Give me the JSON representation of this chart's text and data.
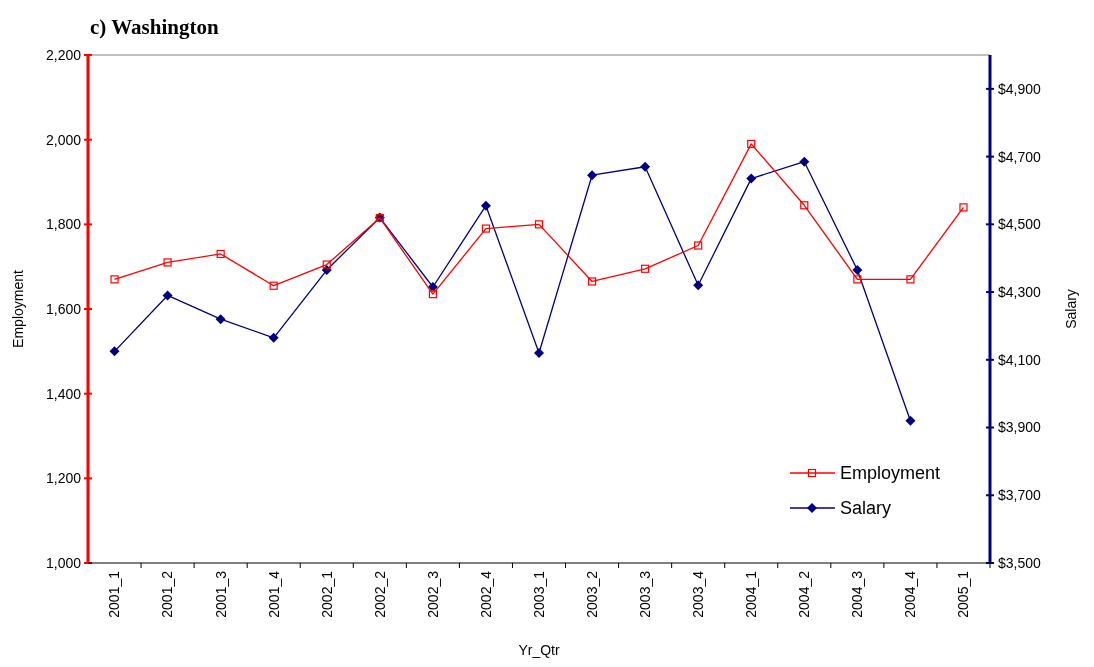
{
  "chart_data": {
    "type": "line",
    "title": "c) Washington",
    "xlabel": "Yr_Qtr",
    "ylabel": "Employment",
    "y2label": "Salary",
    "categories": [
      "2001_1",
      "2001_2",
      "2001_3",
      "2001_4",
      "2002_1",
      "2002_2",
      "2002_3",
      "2002_4",
      "2003_1",
      "2003_2",
      "2003_3",
      "2003_4",
      "2004_1",
      "2004_2",
      "2004_3",
      "2004_4",
      "2005_1"
    ],
    "series": [
      {
        "name": "Employment",
        "color": "#ff0000",
        "marker": "square",
        "values": [
          1670,
          1710,
          1730,
          1655,
          1705,
          1815,
          1635,
          1790,
          1800,
          1665,
          1695,
          1750,
          1990,
          1845,
          1670,
          1670,
          1840
        ]
      },
      {
        "name": "Salary",
        "color": "#000080",
        "marker": "diamond",
        "axis": "y2",
        "values": [
          4125,
          4290,
          4220,
          4165,
          4365,
          4520,
          4315,
          4555,
          4120,
          4645,
          4670,
          4320,
          4635,
          4685,
          4365,
          3920,
          null
        ]
      }
    ],
    "ylim": [
      1000,
      2200
    ],
    "yticks": [
      {
        "value": 1000,
        "label": "1,000"
      },
      {
        "value": 1200,
        "label": "1,200"
      },
      {
        "value": 1400,
        "label": "1,400"
      },
      {
        "value": 1600,
        "label": "1,600"
      },
      {
        "value": 1800,
        "label": "1,800"
      },
      {
        "value": 2000,
        "label": "2,000"
      },
      {
        "value": 2200,
        "label": "2,200"
      }
    ],
    "y2lim": [
      3500,
      5000
    ],
    "y2ticks": [
      {
        "value": 3500,
        "label": "$3,500"
      },
      {
        "value": 3700,
        "label": "$3,700"
      },
      {
        "value": 3900,
        "label": "$3,900"
      },
      {
        "value": 4100,
        "label": "$4,100"
      },
      {
        "value": 4300,
        "label": "$4,300"
      },
      {
        "value": 4500,
        "label": "$4,500"
      },
      {
        "value": 4700,
        "label": "$4,700"
      },
      {
        "value": 4900,
        "label": "$4,900"
      }
    ],
    "grid": false,
    "legend": "bottom right"
  }
}
